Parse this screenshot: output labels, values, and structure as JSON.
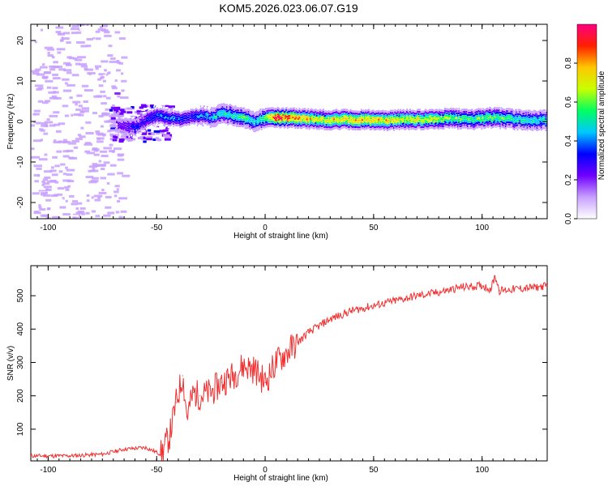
{
  "title": "KOM5.2026.023.06.07.G19",
  "chart_data": [
    {
      "type": "heatmap",
      "xlabel": "Height of straight line (km)",
      "ylabel": "Frequency (Hz)",
      "xlim": [
        -108,
        130
      ],
      "ylim": [
        -24,
        24
      ],
      "xticks": [
        -100,
        -50,
        0,
        50,
        100
      ],
      "yticks": [
        -20,
        -10,
        0,
        10,
        20
      ],
      "colorbar": {
        "label": "Normalized spectral amplitude",
        "range": [
          0,
          1
        ],
        "ticks": [
          "0.0",
          "0.2",
          "0.4",
          "0.6",
          "0.8"
        ],
        "tick_values": [
          0.0,
          0.2,
          0.4,
          0.6,
          0.8
        ],
        "colors": [
          "#ffffff",
          "#c8a0ff",
          "#7000ff",
          "#0000ff",
          "#00c8ff",
          "#00ff60",
          "#c8ff00",
          "#ffc800",
          "#ff2000",
          "#ff0080"
        ]
      },
      "ridge": [
        {
          "x": -66,
          "f": -1.0,
          "amp": 0.25
        },
        {
          "x": -60,
          "f": -1.5,
          "amp": 0.3
        },
        {
          "x": -55,
          "f": 0.5,
          "amp": 0.3
        },
        {
          "x": -50,
          "f": 1.5,
          "amp": 0.35
        },
        {
          "x": -45,
          "f": 1.0,
          "amp": 0.4
        },
        {
          "x": -40,
          "f": 0.5,
          "amp": 0.35
        },
        {
          "x": -35,
          "f": 1.0,
          "amp": 0.3
        },
        {
          "x": -30,
          "f": 1.5,
          "amp": 0.4
        },
        {
          "x": -25,
          "f": 1.0,
          "amp": 0.45
        },
        {
          "x": -20,
          "f": 2.0,
          "amp": 0.5
        },
        {
          "x": -15,
          "f": 1.5,
          "amp": 0.5
        },
        {
          "x": -10,
          "f": 1.0,
          "amp": 0.55
        },
        {
          "x": -5,
          "f": 0.0,
          "amp": 0.45
        },
        {
          "x": 0,
          "f": 1.0,
          "amp": 0.6
        },
        {
          "x": 5,
          "f": 1.0,
          "amp": 0.95
        },
        {
          "x": 15,
          "f": 0.8,
          "amp": 0.8
        },
        {
          "x": 25,
          "f": 0.5,
          "amp": 0.7
        },
        {
          "x": 35,
          "f": 0.5,
          "amp": 0.75
        },
        {
          "x": 45,
          "f": 0.5,
          "amp": 0.8
        },
        {
          "x": 55,
          "f": 0.3,
          "amp": 0.75
        },
        {
          "x": 65,
          "f": 0.5,
          "amp": 0.7
        },
        {
          "x": 75,
          "f": 0.5,
          "amp": 0.7
        },
        {
          "x": 85,
          "f": 0.8,
          "amp": 0.6
        },
        {
          "x": 95,
          "f": 0.5,
          "amp": 0.55
        },
        {
          "x": 105,
          "f": 1.0,
          "amp": 0.6
        },
        {
          "x": 115,
          "f": 0.5,
          "amp": 0.5
        },
        {
          "x": 125,
          "f": 0.3,
          "amp": 0.5
        }
      ]
    },
    {
      "type": "line",
      "xlabel": "Height of straight line (km)",
      "ylabel": "SNR (v/v)",
      "xlim": [
        -108,
        130
      ],
      "ylim": [
        5,
        590
      ],
      "xticks": [
        -100,
        -50,
        0,
        50,
        100
      ],
      "yticks": [
        100,
        200,
        300,
        400,
        500
      ],
      "color": "#f03030",
      "x": [
        -108,
        -90,
        -75,
        -65,
        -55,
        -48,
        -44,
        -41,
        -38,
        -36,
        -33,
        -30,
        -25,
        -20,
        -15,
        -10,
        -5,
        0,
        5,
        10,
        15,
        20,
        25,
        30,
        40,
        50,
        60,
        70,
        80,
        90,
        100,
        104,
        106,
        108,
        115,
        125,
        130
      ],
      "values": [
        20,
        20,
        25,
        40,
        45,
        25,
        80,
        180,
        260,
        140,
        210,
        200,
        210,
        240,
        260,
        290,
        280,
        240,
        300,
        330,
        360,
        390,
        410,
        430,
        455,
        470,
        485,
        500,
        510,
        525,
        530,
        520,
        560,
        515,
        520,
        525,
        530
      ]
    }
  ]
}
